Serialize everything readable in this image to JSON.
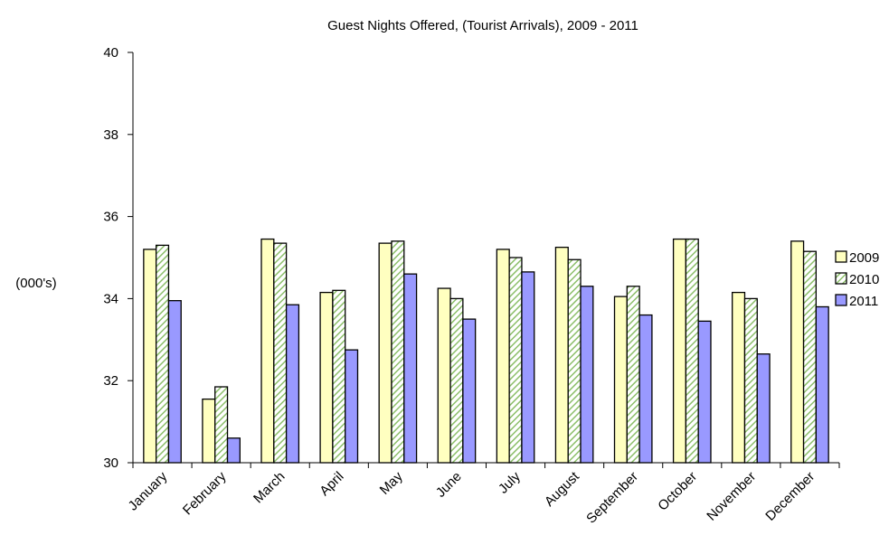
{
  "chart_data": {
    "type": "bar",
    "title": "Guest Nights Offered, (Tourist Arrivals), 2009 - 2011",
    "ylabel": "(000's)",
    "xlabel": "",
    "ylim": [
      30,
      40
    ],
    "ytick_step": 2,
    "grid": false,
    "legend_position": "right",
    "categories": [
      "January",
      "February",
      "March",
      "April",
      "May",
      "June",
      "July",
      "August",
      "September",
      "October",
      "November",
      "December"
    ],
    "series": [
      {
        "name": "2009",
        "color": "#ffffc0",
        "pattern": "solid",
        "values": [
          35.2,
          31.55,
          35.45,
          34.15,
          35.35,
          34.25,
          35.2,
          35.25,
          34.05,
          35.45,
          34.15,
          35.4
        ]
      },
      {
        "name": "2010",
        "color": "#a8d08d",
        "pattern": "hatched",
        "values": [
          35.3,
          31.85,
          35.35,
          34.2,
          35.4,
          34.0,
          35.0,
          34.95,
          34.3,
          35.45,
          34.0,
          35.15
        ]
      },
      {
        "name": "2011",
        "color": "#9999ff",
        "pattern": "solid",
        "values": [
          33.95,
          30.6,
          33.85,
          32.75,
          34.6,
          33.5,
          34.65,
          34.3,
          33.6,
          33.45,
          32.65,
          33.8
        ]
      }
    ]
  }
}
